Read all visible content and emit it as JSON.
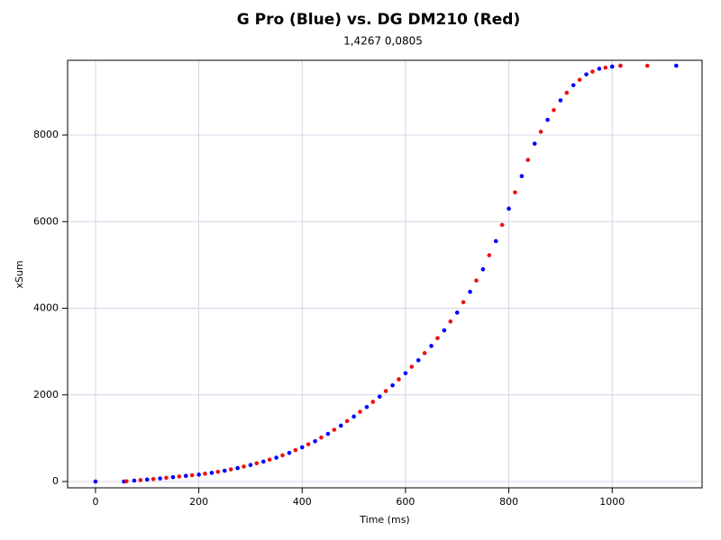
{
  "chart_data": {
    "type": "scatter",
    "title": "G Pro (Blue) vs. DG DM210 (Red)",
    "subtitle": "1,4267 0,0805",
    "xlabel": "Time (ms)",
    "ylabel": "xSum",
    "xlim": [
      -54,
      1174
    ],
    "ylim": [
      -145,
      9725
    ],
    "xticks": [
      0,
      200,
      400,
      600,
      800,
      1000
    ],
    "yticks": [
      0,
      2000,
      4000,
      6000,
      8000
    ],
    "grid": true,
    "series": [
      {
        "name": "Blue",
        "color": "#0000ff",
        "x": [
          0,
          55,
          75,
          100,
          125,
          150,
          175,
          200,
          225,
          250,
          275,
          300,
          325,
          350,
          375,
          400,
          425,
          450,
          475,
          500,
          525,
          550,
          575,
          600,
          625,
          650,
          675,
          700,
          725,
          750,
          775,
          800,
          825,
          850,
          875,
          900,
          925,
          950,
          975,
          1000,
          1016,
          1124
        ],
        "values": [
          0,
          0,
          20,
          45,
          70,
          100,
          130,
          160,
          200,
          250,
          310,
          380,
          460,
          550,
          660,
          790,
          930,
          1100,
          1290,
          1500,
          1720,
          1960,
          2220,
          2500,
          2800,
          3130,
          3490,
          3900,
          4380,
          4900,
          5550,
          6300,
          7050,
          7800,
          8350,
          8800,
          9150,
          9400,
          9530,
          9580,
          9600,
          9600
        ]
      },
      {
        "name": "Red",
        "color": "#ee1111",
        "x": [
          60,
          87,
          112,
          137,
          162,
          187,
          212,
          237,
          262,
          287,
          312,
          337,
          362,
          387,
          412,
          437,
          462,
          487,
          512,
          537,
          562,
          587,
          612,
          637,
          662,
          687,
          712,
          737,
          762,
          787,
          812,
          837,
          862,
          887,
          912,
          937,
          962,
          987,
          1016,
          1068
        ],
        "values": [
          5,
          32,
          57,
          85,
          115,
          145,
          180,
          225,
          280,
          345,
          420,
          505,
          605,
          725,
          860,
          1015,
          1195,
          1395,
          1610,
          1840,
          2090,
          2360,
          2650,
          2965,
          3310,
          3695,
          4140,
          4640,
          5225,
          5925,
          6675,
          7425,
          8075,
          8575,
          8975,
          9275,
          9465,
          9555,
          9600,
          9600
        ]
      }
    ]
  }
}
